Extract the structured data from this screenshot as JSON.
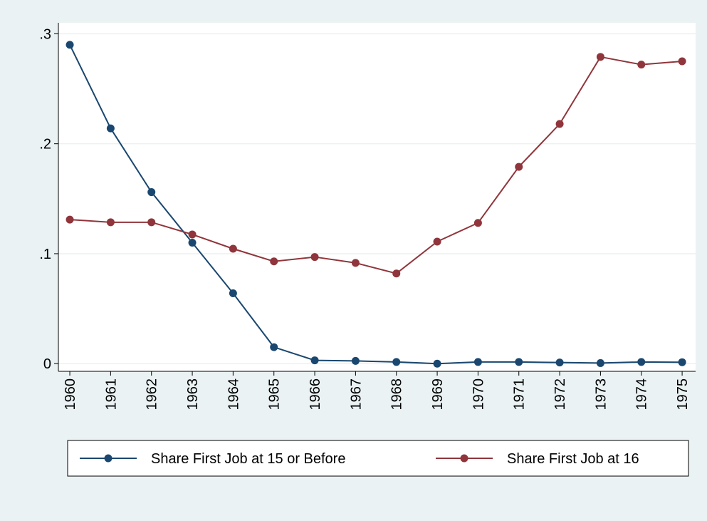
{
  "chart_data": {
    "type": "line",
    "x": [
      1960,
      1961,
      1962,
      1963,
      1964,
      1965,
      1966,
      1967,
      1968,
      1969,
      1970,
      1971,
      1972,
      1973,
      1974,
      1975
    ],
    "series": [
      {
        "name": "Share First Job at 15 or Before",
        "color": "#1a476f",
        "values": [
          0.29,
          0.214,
          0.156,
          0.11,
          0.064,
          0.015,
          0.003,
          0.0025,
          0.0015,
          0,
          0.0015,
          0.0015,
          0.001,
          0.0005,
          0.0015,
          0.0013
        ]
      },
      {
        "name": "Share First Job at 16",
        "color": "#90353b",
        "values": [
          0.131,
          0.1286,
          0.1286,
          0.1175,
          0.1045,
          0.093,
          0.097,
          0.0916,
          0.082,
          0.111,
          0.128,
          0.179,
          0.218,
          0.279,
          0.272,
          0.275
        ]
      }
    ],
    "xlim": [
      1959.72,
      1975.33
    ],
    "xticks": [
      1960,
      1961,
      1962,
      1963,
      1964,
      1965,
      1966,
      1967,
      1968,
      1969,
      1970,
      1971,
      1972,
      1973,
      1974,
      1975
    ],
    "ylim": [
      -0.007,
      0.31
    ],
    "yticks": [
      0,
      {
        "value": 0.1,
        "label": ".1"
      },
      {
        "value": 0.2,
        "label": ".2"
      },
      {
        "value": 0.3,
        "label": ".3"
      }
    ],
    "grid": true
  }
}
